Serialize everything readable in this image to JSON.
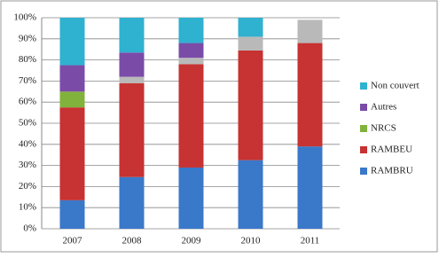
{
  "chart_data": {
    "type": "stacked_bar",
    "categories": [
      "2007",
      "2008",
      "2009",
      "2010",
      "2011"
    ],
    "series": [
      {
        "name": "RAMBRU",
        "color": "#3a78c9",
        "values": [
          13.5,
          24.5,
          29,
          32.5,
          39
        ]
      },
      {
        "name": "RAMBEU",
        "color": "#c73232",
        "values": [
          44,
          44.5,
          49,
          52,
          49
        ]
      },
      {
        "name": "NRCS",
        "color": "#80b23c",
        "values": [
          7.5,
          0,
          0,
          0,
          0
        ]
      },
      {
        "name": null,
        "color": "#b9b9b9",
        "values": [
          0,
          3,
          3,
          6.5,
          11
        ]
      },
      {
        "name": "Autres",
        "color": "#7b4ba8",
        "values": [
          12.5,
          11.5,
          7,
          0,
          0
        ]
      },
      {
        "name": "Non couvert",
        "color": "#2fb1d0",
        "values": [
          22.5,
          16.5,
          12,
          9,
          0
        ]
      }
    ],
    "ylim": [
      0,
      100
    ],
    "yticks": [
      {
        "value": 0,
        "label": "0%"
      },
      {
        "value": 10,
        "label": "10%"
      },
      {
        "value": 20,
        "label": "20%"
      },
      {
        "value": 30,
        "label": "30%"
      },
      {
        "value": 40,
        "label": "40%"
      },
      {
        "value": 50,
        "label": "50%"
      },
      {
        "value": 60,
        "label": "60%"
      },
      {
        "value": 70,
        "label": "70%"
      },
      {
        "value": 80,
        "label": "80%"
      },
      {
        "value": 90,
        "label": "90%"
      },
      {
        "value": 100,
        "label": "100%"
      }
    ],
    "grid": true,
    "legend": "right"
  }
}
